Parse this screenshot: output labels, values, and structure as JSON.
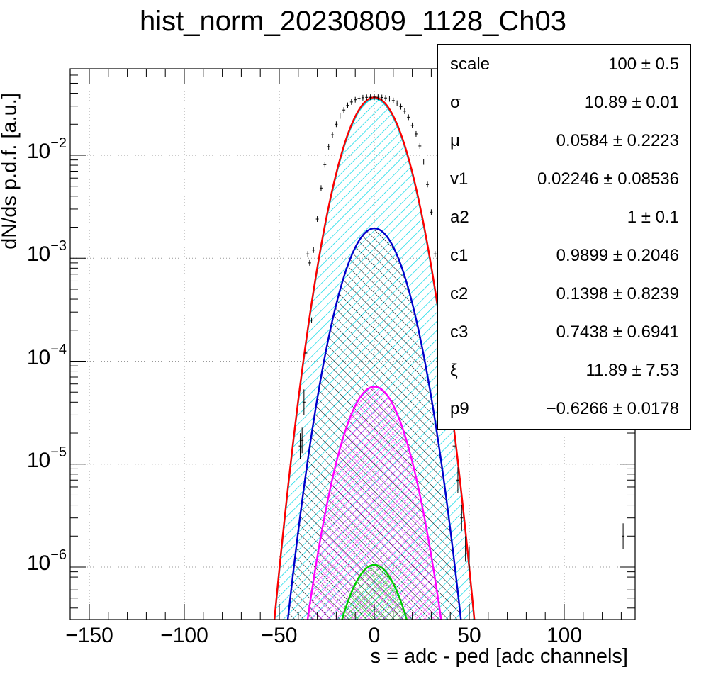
{
  "title": "hist_norm_20230809_1128_Ch03",
  "chart_data": {
    "type": "line",
    "title": "hist_norm_20230809_1128_Ch03",
    "xlabel": "s = adc - ped [adc channels]",
    "ylabel": "dN/ds p.d.f. [a.u.]",
    "xlim": [
      -155,
      133
    ],
    "ylim": [
      3e-07,
      0.07
    ],
    "yscale": "log",
    "grid": true,
    "x_ticks": [
      "−150",
      "−100",
      "−50",
      "0",
      "50",
      "100"
    ],
    "x_tick_values": [
      -150,
      -100,
      -50,
      0,
      50,
      100
    ],
    "y_ticks": [
      {
        "mant": "10",
        "exp": "−2",
        "value": 0.01
      },
      {
        "mant": "10",
        "exp": "−3",
        "value": 0.001
      },
      {
        "mant": "10",
        "exp": "−4",
        "value": 0.0001
      },
      {
        "mant": "10",
        "exp": "−5",
        "value": 1e-05
      },
      {
        "mant": "10",
        "exp": "−6",
        "value": 1e-06
      }
    ],
    "series": [
      {
        "color": "#ff0000",
        "peak": 0.0365,
        "sigma": 10.89,
        "mu": 0.0584,
        "fill": "none"
      },
      {
        "color": "#00d8e6",
        "peak": 0.0355,
        "sigma": 10.89,
        "mu": 0.0584,
        "fill": "cyan-hatch"
      },
      {
        "color": "#0000cc",
        "peak": 0.00195,
        "sigma": 10.89,
        "mu": 0.0584,
        "fill": "black-hatch"
      },
      {
        "color": "#ff00ff",
        "peak": 5.65e-05,
        "sigma": 10.89,
        "mu": 0.0584,
        "fill": "magenta-cross"
      },
      {
        "color": "#00cc00",
        "peak": 1.05e-06,
        "sigma": 10.89,
        "mu": 0.0584,
        "fill": "green-cross"
      }
    ],
    "data_points": [
      {
        "x": -35,
        "y": 0.0011
      },
      {
        "x": -34,
        "y": 0.0009
      },
      {
        "x": -33,
        "y": 0.00025
      },
      {
        "x": -36,
        "y": 0.00012
      },
      {
        "x": -37,
        "y": 4e-05
      },
      {
        "x": -38,
        "y": 1.7e-05
      },
      {
        "x": -39,
        "y": 1.5e-05
      },
      {
        "x": -32,
        "y": 0.0012
      },
      {
        "x": -30,
        "y": 0.0024
      },
      {
        "x": -28,
        "y": 0.0048
      },
      {
        "x": -26,
        "y": 0.0081
      },
      {
        "x": -24,
        "y": 0.0121
      },
      {
        "x": -22,
        "y": 0.0158
      },
      {
        "x": -20,
        "y": 0.02
      },
      {
        "x": -18,
        "y": 0.0241
      },
      {
        "x": -16,
        "y": 0.0275
      },
      {
        "x": -14,
        "y": 0.0305
      },
      {
        "x": -12,
        "y": 0.0329
      },
      {
        "x": -10,
        "y": 0.0346
      },
      {
        "x": -8,
        "y": 0.0357
      },
      {
        "x": -6,
        "y": 0.0362
      },
      {
        "x": -4,
        "y": 0.0365
      },
      {
        "x": -2,
        "y": 0.0366
      },
      {
        "x": 0,
        "y": 0.0367
      },
      {
        "x": 2,
        "y": 0.0366
      },
      {
        "x": 4,
        "y": 0.0364
      },
      {
        "x": 6,
        "y": 0.036
      },
      {
        "x": 8,
        "y": 0.0353
      },
      {
        "x": 10,
        "y": 0.034
      },
      {
        "x": 12,
        "y": 0.032
      },
      {
        "x": 14,
        "y": 0.0296
      },
      {
        "x": 16,
        "y": 0.0268
      },
      {
        "x": 18,
        "y": 0.0234
      },
      {
        "x": 20,
        "y": 0.0195
      },
      {
        "x": 22,
        "y": 0.0161
      },
      {
        "x": 24,
        "y": 0.0123
      },
      {
        "x": 26,
        "y": 0.0086
      },
      {
        "x": 28,
        "y": 0.0052
      },
      {
        "x": 30,
        "y": 0.0028
      },
      {
        "x": 32,
        "y": 0.0011
      },
      {
        "x": 34,
        "y": 0.0005
      },
      {
        "x": 36,
        "y": 0.00014
      },
      {
        "x": 38,
        "y": 6e-05
      },
      {
        "x": 40,
        "y": 3e-05
      },
      {
        "x": 42,
        "y": 1.5e-05
      },
      {
        "x": 44,
        "y": 7e-06
      },
      {
        "x": 46,
        "y": 3e-06
      },
      {
        "x": 48,
        "y": 1.5e-06
      },
      {
        "x": 50,
        "y": 1.2e-06
      },
      {
        "x": 131,
        "y": 2e-06
      }
    ]
  },
  "stats": {
    "rows": [
      {
        "name": "scale",
        "value": "100 ± 0.5"
      },
      {
        "name": "σ",
        "value": "10.89 ± 0.01"
      },
      {
        "name": "μ",
        "value": "0.0584 ± 0.2223"
      },
      {
        "name": "v1",
        "value": "0.02246 ± 0.08536"
      },
      {
        "name": "a2",
        "value": "1 ± 0.1"
      },
      {
        "name": "c1",
        "value": "0.9899 ± 0.2046"
      },
      {
        "name": "c2",
        "value": "0.1398 ± 0.8239"
      },
      {
        "name": "c3",
        "value": "0.7438 ± 0.6941"
      },
      {
        "name": "ξ",
        "value": "11.89 ± 7.53"
      },
      {
        "name": "p9",
        "value": "−0.6266 ± 0.0178"
      }
    ]
  }
}
